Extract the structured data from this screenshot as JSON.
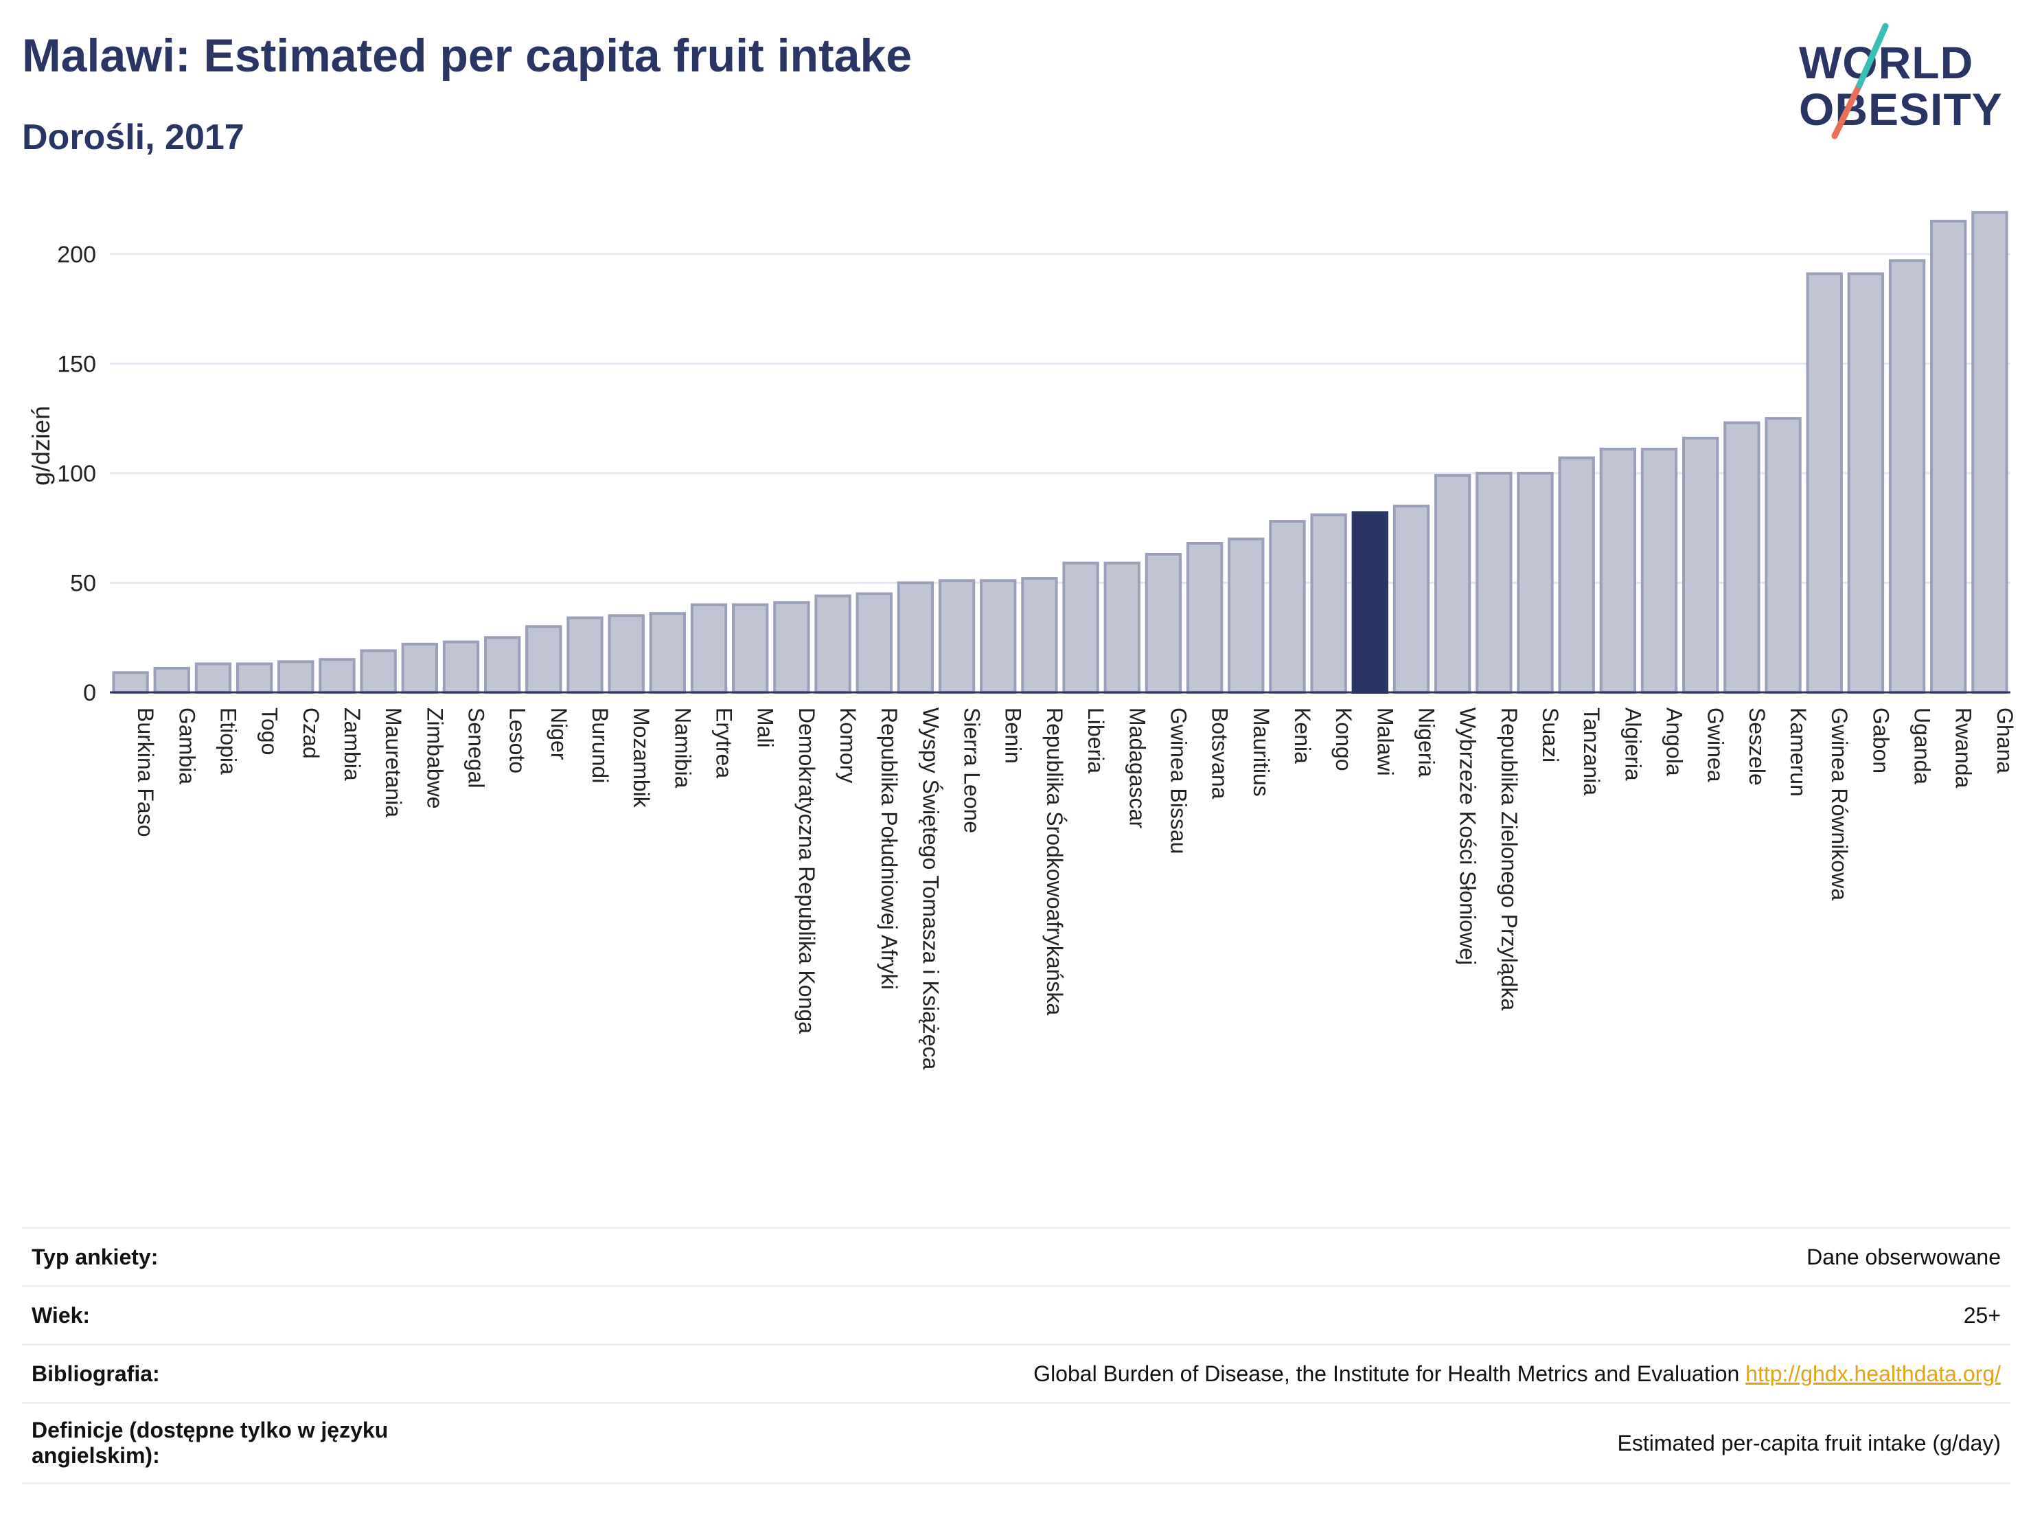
{
  "title": "Malawi: Estimated per capita fruit intake",
  "subtitle": "Dorośli, 2017",
  "logo": {
    "line1": "WORLD",
    "line2": "OBESITY"
  },
  "colors": {
    "bar": "#c1c5d3",
    "bar_border": "#9aa0b8",
    "highlight": "#2b3563",
    "text": "#2b3563",
    "grid": "#e5e7ef",
    "link": "#e3a316"
  },
  "chart_data": {
    "type": "bar",
    "ylabel": "g/dzień",
    "ylim": [
      0,
      225
    ],
    "yticks": [
      0,
      50,
      100,
      150,
      200
    ],
    "highlight": "Malawi",
    "grid": true,
    "categories": [
      "Burkina Faso",
      "Gambia",
      "Etiopia",
      "Togo",
      "Czad",
      "Zambia",
      "Mauretania",
      "Zimbabwe",
      "Senegal",
      "Lesoto",
      "Niger",
      "Burundi",
      "Mozambik",
      "Namibia",
      "Erytrea",
      "Mali",
      "Demokratyczna Republika Konga",
      "Komory",
      "Republika Południowej Afryki",
      "Wyspy Świętego Tomasza i Książęca",
      "Sierra Leone",
      "Benin",
      "Republika Środkowoafrykańska",
      "Liberia",
      "Madagascar",
      "Gwinea Bissau",
      "Botsvana",
      "Mauritius",
      "Kenia",
      "Kongo",
      "Malawi",
      "Nigeria",
      "Wybrzeże Kości Słoniowej",
      "Republika Zielonego Przylądka",
      "Suazi",
      "Tanzania",
      "Algieria",
      "Angola",
      "Gwinea",
      "Seszele",
      "Kamerun",
      "Gwinea Równikowa",
      "Gabon",
      "Uganda",
      "Rwanda",
      "Ghana"
    ],
    "values": [
      9,
      11,
      13,
      13,
      14,
      15,
      19,
      22,
      23,
      25,
      30,
      34,
      35,
      36,
      40,
      40,
      41,
      44,
      45,
      50,
      51,
      51,
      52,
      59,
      59,
      63,
      68,
      70,
      78,
      81,
      82,
      85,
      99,
      100,
      100,
      107,
      111,
      111,
      116,
      123,
      125,
      191,
      191,
      197,
      215,
      219
    ]
  },
  "info": {
    "rows": [
      {
        "label": "Typ ankiety:",
        "value": "Dane obserwowane",
        "link": ""
      },
      {
        "label": "Wiek:",
        "value": "25+",
        "link": ""
      },
      {
        "label": "Bibliografia:",
        "value": "Global Burden of Disease, the Institute for Health Metrics and Evaluation",
        "link": "http://ghdx.healthdata.org/"
      },
      {
        "label": "Definicje (dostępne tylko w języku angielskim):",
        "value": "Estimated per-capita fruit intake (g/day)",
        "link": ""
      }
    ]
  }
}
